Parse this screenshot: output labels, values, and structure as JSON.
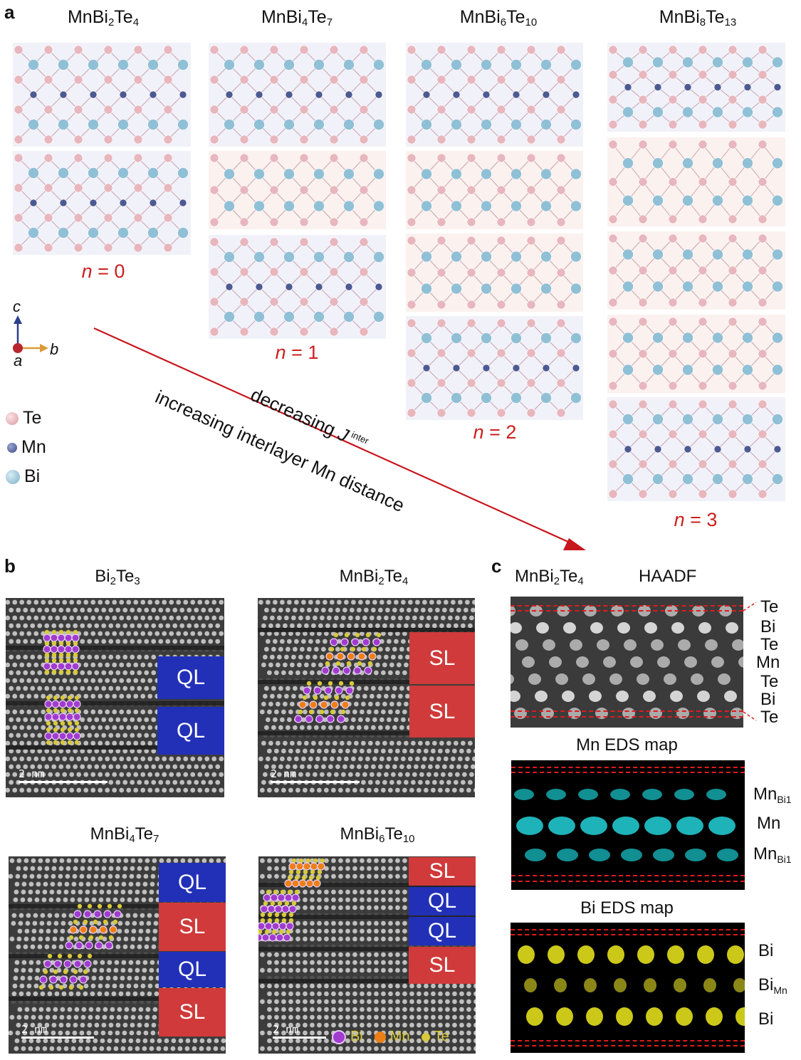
{
  "panel_a": {
    "letter": "a",
    "columns": [
      {
        "formula": {
          "base": "MnBi",
          "s1": "2",
          "mid": "Te",
          "s2": "4"
        },
        "n_label": "n",
        "n_value": " = 0",
        "layers": [
          "SL",
          "SL"
        ]
      },
      {
        "formula": {
          "base": "MnBi",
          "s1": "4",
          "mid": "Te",
          "s2": "7"
        },
        "n_label": "n",
        "n_value": " = 1",
        "layers": [
          "SL",
          "QL",
          "SL"
        ]
      },
      {
        "formula": {
          "base": "MnBi",
          "s1": "6",
          "mid": "Te",
          "s2": "10"
        },
        "n_label": "n",
        "n_value": " = 2",
        "layers": [
          "SL",
          "QL",
          "QL",
          "SL"
        ]
      },
      {
        "formula": {
          "base": "MnBi",
          "s1": "8",
          "mid": "Te",
          "s2": "13"
        },
        "n_label": "n",
        "n_value": " = 3",
        "layers": [
          "SL",
          "QL",
          "QL",
          "QL",
          "SL"
        ]
      }
    ],
    "axes": {
      "c": "c",
      "b": "b",
      "a": "a"
    },
    "legend": [
      {
        "label": "Te",
        "color": "#e8b6bd"
      },
      {
        "label": "Mn",
        "color": "#4c5a92"
      },
      {
        "label": "Bi",
        "color": "#8fc0d6"
      }
    ],
    "arrow_text_1": {
      "pre": "decreasing ",
      "J": "J",
      "sup": "inter"
    },
    "arrow_text_2": "increasing interlayer Mn distance",
    "arrow_color": "#c8161d"
  },
  "panel_b": {
    "letter": "b",
    "images": [
      {
        "title": {
          "base": "Bi",
          "s1": "2",
          "mid": "Te",
          "s2": "3"
        },
        "tags": [
          "QL",
          "QL"
        ],
        "scale": "2 nm"
      },
      {
        "title": {
          "base": "MnBi",
          "s1": "2",
          "mid": "Te",
          "s2": "4"
        },
        "tags": [
          "SL",
          "SL"
        ],
        "scale": "2 nm"
      },
      {
        "title": {
          "base": "MnBi",
          "s1": "4",
          "mid": "Te",
          "s2": "7"
        },
        "tags": [
          "QL",
          "SL",
          "QL",
          "SL"
        ],
        "scale": "2 nm"
      },
      {
        "title": {
          "base": "MnBi",
          "s1": "6",
          "mid": "Te",
          "s2": "10"
        },
        "tags": [
          "SL",
          "QL",
          "QL",
          "SL"
        ],
        "scale": "2 nm"
      }
    ],
    "legend": [
      {
        "label": "Bi",
        "color": "#a23bd0"
      },
      {
        "label": "Mn",
        "color": "#ee7f16"
      },
      {
        "label": "Te",
        "color": "#d8c93a"
      }
    ]
  },
  "panel_c": {
    "letter": "c",
    "title": {
      "base": "MnBi",
      "s1": "2",
      "mid": "Te",
      "s2": "4"
    },
    "haadf_label": "HAADF",
    "haadf_rows": [
      "Te",
      "Bi",
      "Te",
      "Mn",
      "Te",
      "Bi",
      "Te"
    ],
    "mn_title": "Mn EDS map",
    "mn_rows": [
      {
        "base": "Mn",
        "sub": "Bi1"
      },
      {
        "base": "Mn",
        "sub": ""
      },
      {
        "base": "Mn",
        "sub": "Bi1"
      }
    ],
    "bi_title": "Bi EDS map",
    "bi_rows": [
      {
        "base": "Bi",
        "sub": ""
      },
      {
        "base": "Bi",
        "sub": "Mn"
      },
      {
        "base": "Bi",
        "sub": ""
      }
    ],
    "mn_color": "#22d2d8",
    "bi_color": "#e2de1c"
  }
}
